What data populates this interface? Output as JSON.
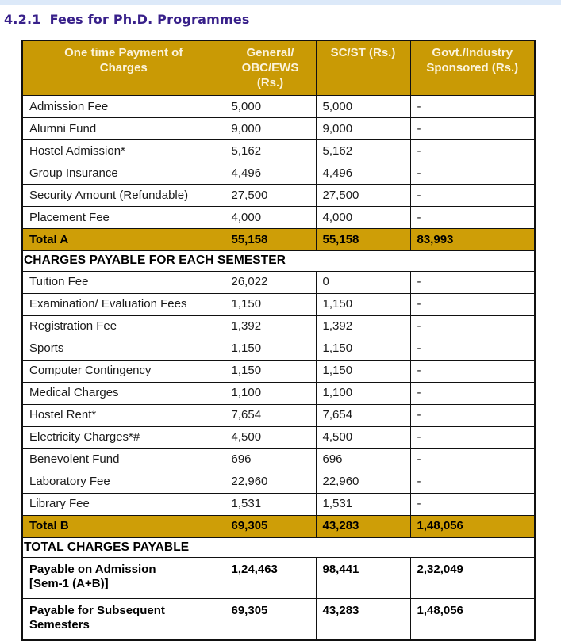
{
  "page": {
    "section_number": "4.2.1",
    "title": "Fees for Ph.D. Programmes"
  },
  "colors": {
    "gold_header": "#C99A05",
    "gold_total": "#CE9E07",
    "title_purple": "#38208A",
    "top_strip_blue": "#DCE9F9"
  },
  "table": {
    "headers": [
      "One time Payment of\nCharges",
      "General/\nOBC/EWS\n(Rs.)",
      "SC/ST (Rs.)",
      "Govt./Industry\nSponsored (Rs.)"
    ],
    "rows": [
      {
        "type": "data",
        "label": "Admission Fee",
        "values": [
          "5,000",
          "5,000",
          "-"
        ]
      },
      {
        "type": "data",
        "label": "Alumni Fund",
        "values": [
          "9,000",
          "9,000",
          "-"
        ]
      },
      {
        "type": "data",
        "label": "Hostel Admission*",
        "values": [
          "5,162",
          "5,162",
          "-"
        ]
      },
      {
        "type": "data",
        "label": "Group Insurance",
        "values": [
          "4,496",
          "4,496",
          "-"
        ]
      },
      {
        "type": "data",
        "label": "Security Amount (Refundable)",
        "values": [
          "27,500",
          "27,500",
          "-"
        ]
      },
      {
        "type": "data",
        "label": "Placement Fee",
        "values": [
          "4,000",
          "4,000",
          "-"
        ]
      },
      {
        "type": "total",
        "label": "Total A",
        "values": [
          "55,158",
          "55,158",
          "83,993"
        ]
      },
      {
        "type": "section",
        "label": "CHARGES PAYABLE FOR EACH SEMESTER"
      },
      {
        "type": "data",
        "label": "Tuition Fee",
        "values": [
          "26,022",
          "0",
          "-"
        ]
      },
      {
        "type": "data",
        "label": "Examination/ Evaluation Fees",
        "values": [
          "1,150",
          "1,150",
          "-"
        ]
      },
      {
        "type": "data",
        "label": "Registration Fee",
        "values": [
          "1,392",
          "1,392",
          "-"
        ]
      },
      {
        "type": "data",
        "label": "Sports",
        "values": [
          "1,150",
          "1,150",
          "-"
        ]
      },
      {
        "type": "data",
        "label": "Computer Contingency",
        "values": [
          "1,150",
          "1,150",
          "-"
        ]
      },
      {
        "type": "data",
        "label": "Medical Charges",
        "values": [
          "1,100",
          "1,100",
          "-"
        ]
      },
      {
        "type": "data",
        "label": "Hostel Rent*",
        "values": [
          "7,654",
          "7,654",
          "-"
        ]
      },
      {
        "type": "data",
        "label": "Electricity Charges*#",
        "values": [
          "4,500",
          "4,500",
          "-"
        ]
      },
      {
        "type": "data",
        "label": "Benevolent Fund",
        "values": [
          "696",
          "696",
          "-"
        ]
      },
      {
        "type": "data",
        "label": "Laboratory Fee",
        "values": [
          "22,960",
          "22,960",
          "-"
        ]
      },
      {
        "type": "data",
        "label": "Library Fee",
        "values": [
          "1,531",
          "1,531",
          "-"
        ]
      },
      {
        "type": "total",
        "label": "Total B",
        "values": [
          "69,305",
          "43,283",
          "1,48,056"
        ]
      },
      {
        "type": "section",
        "label": "TOTAL CHARGES PAYABLE"
      },
      {
        "type": "bold",
        "label": "Payable on Admission\n[Sem-1 (A+B)]",
        "values": [
          "1,24,463",
          "98,441",
          "2,32,049"
        ]
      },
      {
        "type": "bold",
        "label": "Payable for Subsequent\nSemesters",
        "values": [
          "69,305",
          "43,283",
          "1,48,056"
        ]
      }
    ]
  }
}
